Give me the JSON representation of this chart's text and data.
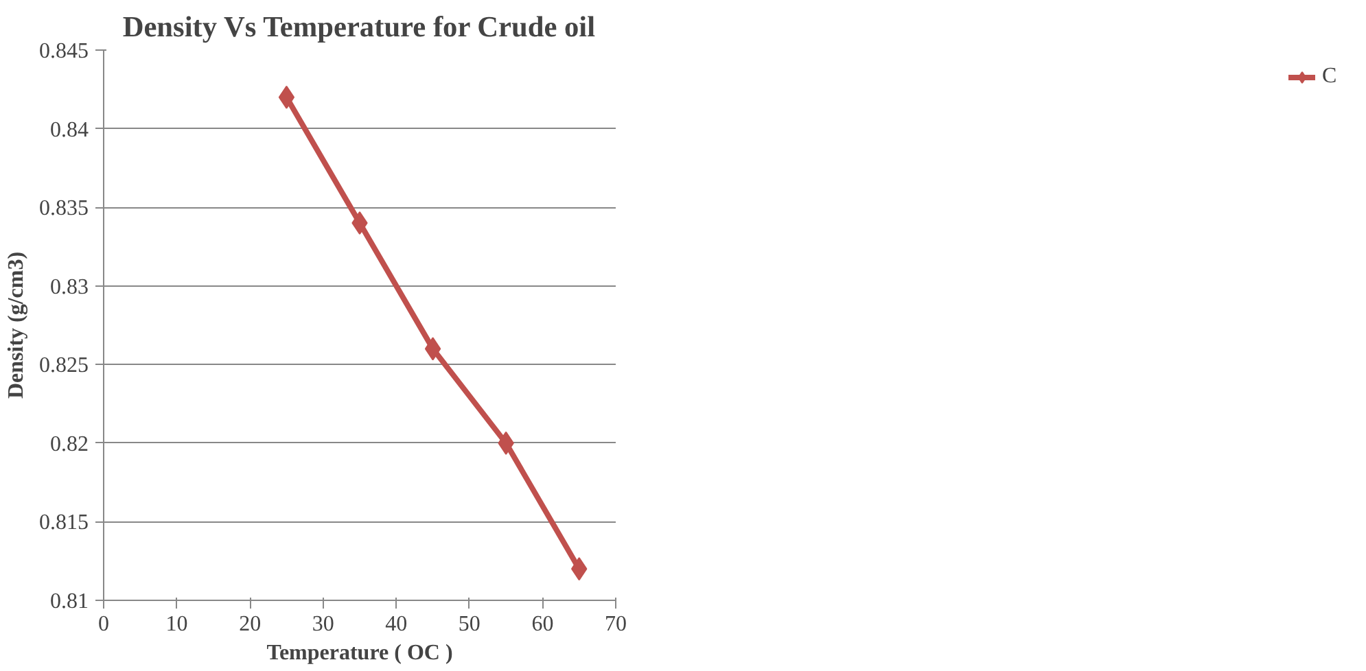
{
  "chart_data": {
    "type": "line",
    "title": "Density Vs Temperature for Crude oil",
    "xlabel": "Temperature ( OC )",
    "ylabel": "Density (g/cm3)",
    "x": [
      25,
      35,
      45,
      55,
      65
    ],
    "series": [
      {
        "name": "C",
        "color": "#c0504d",
        "values": [
          0.842,
          0.834,
          0.826,
          0.82,
          0.812
        ]
      }
    ],
    "xlim": [
      0,
      70
    ],
    "xticks": [
      0,
      10,
      20,
      30,
      40,
      50,
      60,
      70
    ],
    "ylim": [
      0.81,
      0.845
    ],
    "yticks": [
      0.81,
      0.815,
      0.82,
      0.825,
      0.83,
      0.835,
      0.84,
      0.845
    ],
    "grid": "y",
    "legend": "right",
    "marker": "diamond",
    "line_style": "solid"
  }
}
